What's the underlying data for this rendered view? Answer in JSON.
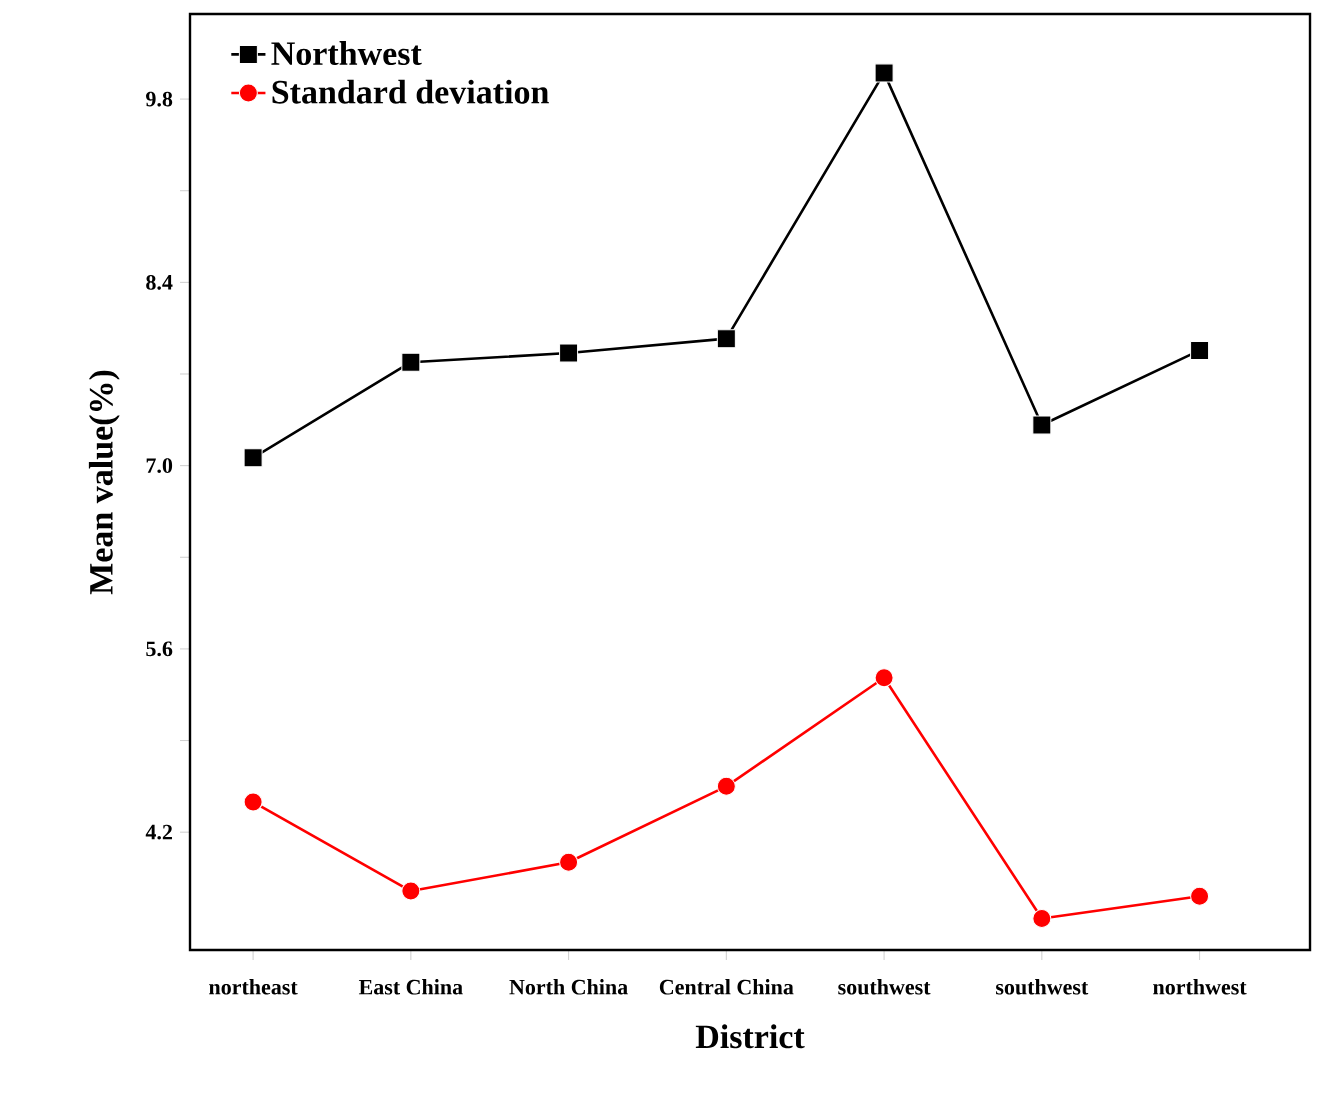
{
  "chart_data": {
    "type": "line",
    "xlabel": "District",
    "ylabel": "Mean value(%)",
    "categories": [
      "northeast",
      "East China",
      "North China",
      "Central China",
      "southwest",
      "southwest",
      "northwest"
    ],
    "series": [
      {
        "name": "Northwest",
        "color": "#000000",
        "marker": "square",
        "values": [
          7.06,
          7.79,
          7.86,
          7.97,
          10.0,
          7.31,
          7.88
        ]
      },
      {
        "name": "Standard deviation",
        "color": "#ff0000",
        "marker": "circle",
        "values": [
          4.43,
          3.75,
          3.97,
          4.55,
          5.38,
          3.54,
          3.71
        ]
      }
    ],
    "ylim": [
      3.3,
      10.45
    ],
    "yticks": [
      {
        "value": 4.2,
        "label": "4.2"
      },
      {
        "value": 5.6,
        "label": "5.6"
      },
      {
        "value": 7.0,
        "label": "7.0"
      },
      {
        "value": 8.4,
        "label": "8.4"
      },
      {
        "value": 9.8,
        "label": "9.8"
      }
    ],
    "legend": "top left",
    "grid": false,
    "line_style": "solid"
  }
}
